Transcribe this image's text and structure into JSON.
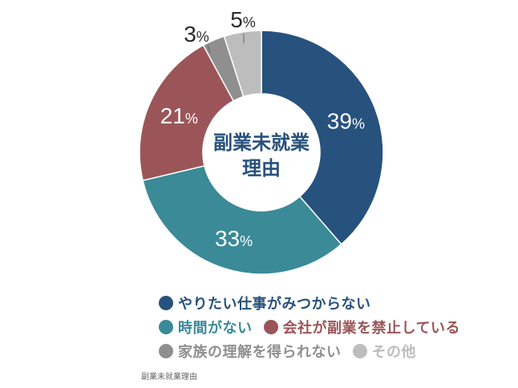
{
  "chart_data": {
    "type": "donut",
    "center_label_lines": [
      "副業未就業",
      "理由"
    ],
    "series": [
      {
        "name": "やりたい仕事がみつからない",
        "value": 39,
        "label": "39%",
        "color": "#27527d"
      },
      {
        "name": "時間がない",
        "value": 33,
        "label": "33%",
        "color": "#3a8a98"
      },
      {
        "name": "会社が副業を禁止している",
        "value": 21,
        "label": "21%",
        "color": "#9b5558"
      },
      {
        "name": "家族の理解を得られない",
        "value": 3,
        "label": "3%",
        "color": "#8f8f8f"
      },
      {
        "name": "その他",
        "value": 5,
        "label": "5%",
        "color": "#bdbdbd"
      }
    ]
  },
  "legend": {
    "rows": [
      [
        0
      ],
      [
        1,
        2
      ],
      [
        3,
        4
      ]
    ]
  },
  "caption": "副業未就業理由",
  "colors": {
    "center_text": "#27527d",
    "outside_label": "#2b2b2b",
    "inside_label": "#ffffff"
  }
}
